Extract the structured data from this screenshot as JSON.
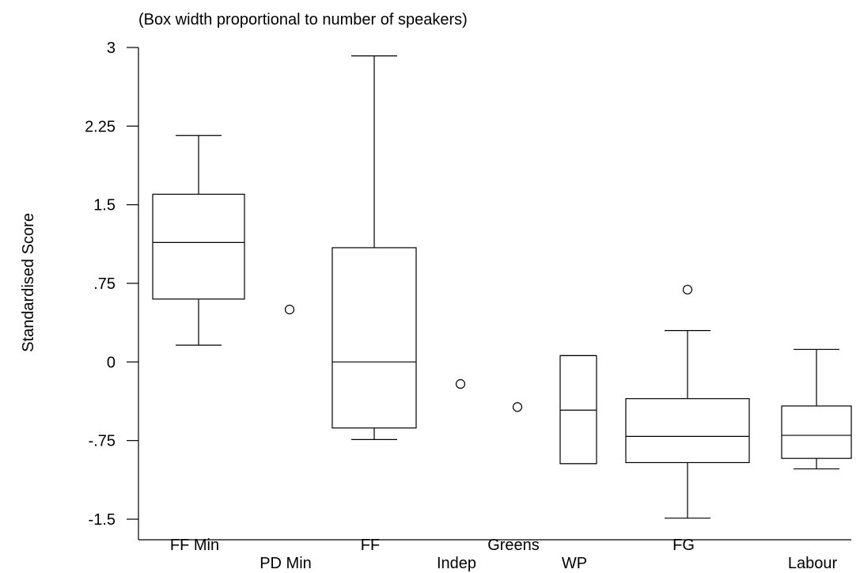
{
  "chart_data": {
    "type": "box",
    "subtitle": "(Box width proportional to number of speakers)",
    "ylabel": "Standardised Score",
    "xlabel": "",
    "ylim": [
      -1.5,
      3
    ],
    "yticks": [
      3,
      2.25,
      1.5,
      0.75,
      0,
      -0.75,
      -1.5
    ],
    "ytick_labels": [
      "3",
      "2.25",
      "1.5",
      ".75",
      "0",
      "-.75",
      "-1.5"
    ],
    "grid": false,
    "categories": [
      "FF Min",
      "PD Min",
      "FF",
      "Indep",
      "Greens",
      "WP",
      "FG",
      "Labour"
    ],
    "boxes": [
      {
        "category": "FF Min",
        "label_row": 1,
        "min": 0.16,
        "q1": 0.6,
        "median": 1.14,
        "q3": 1.6,
        "max": 2.16,
        "outliers": []
      },
      {
        "category": "PD Min",
        "label_row": 2,
        "min": null,
        "q1": null,
        "median": null,
        "q3": null,
        "max": null,
        "outliers": [
          0.5
        ]
      },
      {
        "category": "FF",
        "label_row": 1,
        "min": -0.74,
        "q1": -0.63,
        "median": 0.0,
        "q3": 1.09,
        "max": 2.92,
        "outliers": []
      },
      {
        "category": "Indep",
        "label_row": 2,
        "min": null,
        "q1": null,
        "median": null,
        "q3": null,
        "max": null,
        "outliers": [
          -0.21
        ]
      },
      {
        "category": "Greens",
        "label_row": 1,
        "min": null,
        "q1": null,
        "median": null,
        "q3": null,
        "max": null,
        "outliers": [
          -0.43
        ]
      },
      {
        "category": "WP",
        "label_row": 2,
        "min": -0.97,
        "q1": -0.97,
        "median": -0.46,
        "q3": 0.06,
        "max": 0.06,
        "outliers": []
      },
      {
        "category": "FG",
        "label_row": 1,
        "min": -1.49,
        "q1": -0.96,
        "median": -0.71,
        "q3": -0.35,
        "max": 0.3,
        "outliers": [
          0.69
        ]
      },
      {
        "category": "Labour",
        "label_row": 2,
        "min": -1.02,
        "q1": -0.92,
        "median": -0.7,
        "q3": -0.42,
        "max": 0.12,
        "outliers": []
      }
    ]
  }
}
